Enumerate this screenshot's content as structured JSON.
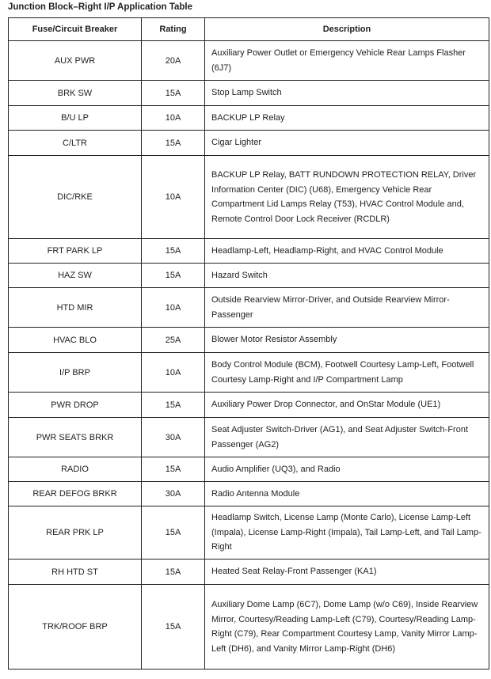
{
  "title": "Junction Block–Right I/P Application Table",
  "headers": [
    "Fuse/Circuit Breaker",
    "Rating",
    "Description"
  ],
  "rows": [
    {
      "fuse": "AUX PWR",
      "rating": "20A",
      "description": "Auxiliary Power Outlet or Emergency Vehicle Rear Lamps Flasher (6J7)"
    },
    {
      "fuse": "BRK SW",
      "rating": "15A",
      "description": "Stop Lamp Switch"
    },
    {
      "fuse": "B/U LP",
      "rating": "10A",
      "description": "BACKUP LP Relay"
    },
    {
      "fuse": "C/LTR",
      "rating": "15A",
      "description": "Cigar Lighter"
    },
    {
      "fuse": "DIC/RKE",
      "rating": "10A",
      "description": "BACKUP LP Relay, BATT RUNDOWN PROTECTION RELAY, Driver Information Center (DIC) (U68), Emergency Vehicle Rear Compartment Lid Lamps Relay (T53), HVAC Control Module and, Remote Control Door Lock Receiver (RCDLR)"
    },
    {
      "fuse": "FRT PARK LP",
      "rating": "15A",
      "description": "Headlamp-Left, Headlamp-Right, and HVAC Control Module"
    },
    {
      "fuse": "HAZ SW",
      "rating": "15A",
      "description": "Hazard Switch"
    },
    {
      "fuse": "HTD MIR",
      "rating": "10A",
      "description": "Outside Rearview Mirror-Driver, and Outside Rearview Mirror-Passenger"
    },
    {
      "fuse": "HVAC BLO",
      "rating": "25A",
      "description": "Blower Motor Resistor Assembly"
    },
    {
      "fuse": "I/P BRP",
      "rating": "10A",
      "description": "Body Control Module (BCM), Footwell Courtesy Lamp-Left, Footwell Courtesy Lamp-Right and I/P Compartment Lamp"
    },
    {
      "fuse": "PWR DROP",
      "rating": "15A",
      "description": "Auxiliary Power Drop Connector, and OnStar Module (UE1)"
    },
    {
      "fuse": "PWR SEATS BRKR",
      "rating": "30A",
      "description": "Seat Adjuster Switch-Driver (AG1), and Seat Adjuster Switch-Front Passenger (AG2)"
    },
    {
      "fuse": "RADIO",
      "rating": "15A",
      "description": "Audio Amplifier (UQ3), and Radio"
    },
    {
      "fuse": "REAR DEFOG BRKR",
      "rating": "30A",
      "description": "Radio Antenna Module"
    },
    {
      "fuse": "REAR PRK LP",
      "rating": "15A",
      "description": "Headlamp Switch, License Lamp (Monte Carlo), License Lamp-Left (Impala), License Lamp-Right (Impala), Tail Lamp-Left, and Tail Lamp-Right"
    },
    {
      "fuse": "RH HTD ST",
      "rating": "15A",
      "description": "Heated Seat Relay-Front Passenger (KA1)"
    },
    {
      "fuse": "TRK/ROOF BRP",
      "rating": "15A",
      "description": "Auxiliary Dome Lamp (6C7), Dome Lamp (w/o C69), Inside Rearview Mirror, Courtesy/Reading Lamp-Left (C79), Courtesy/Reading Lamp-Right (C79), Rear Compartment Courtesy Lamp, Vanity Mirror Lamp-Left (DH6), and Vanity Mirror Lamp-Right (DH6)"
    }
  ]
}
